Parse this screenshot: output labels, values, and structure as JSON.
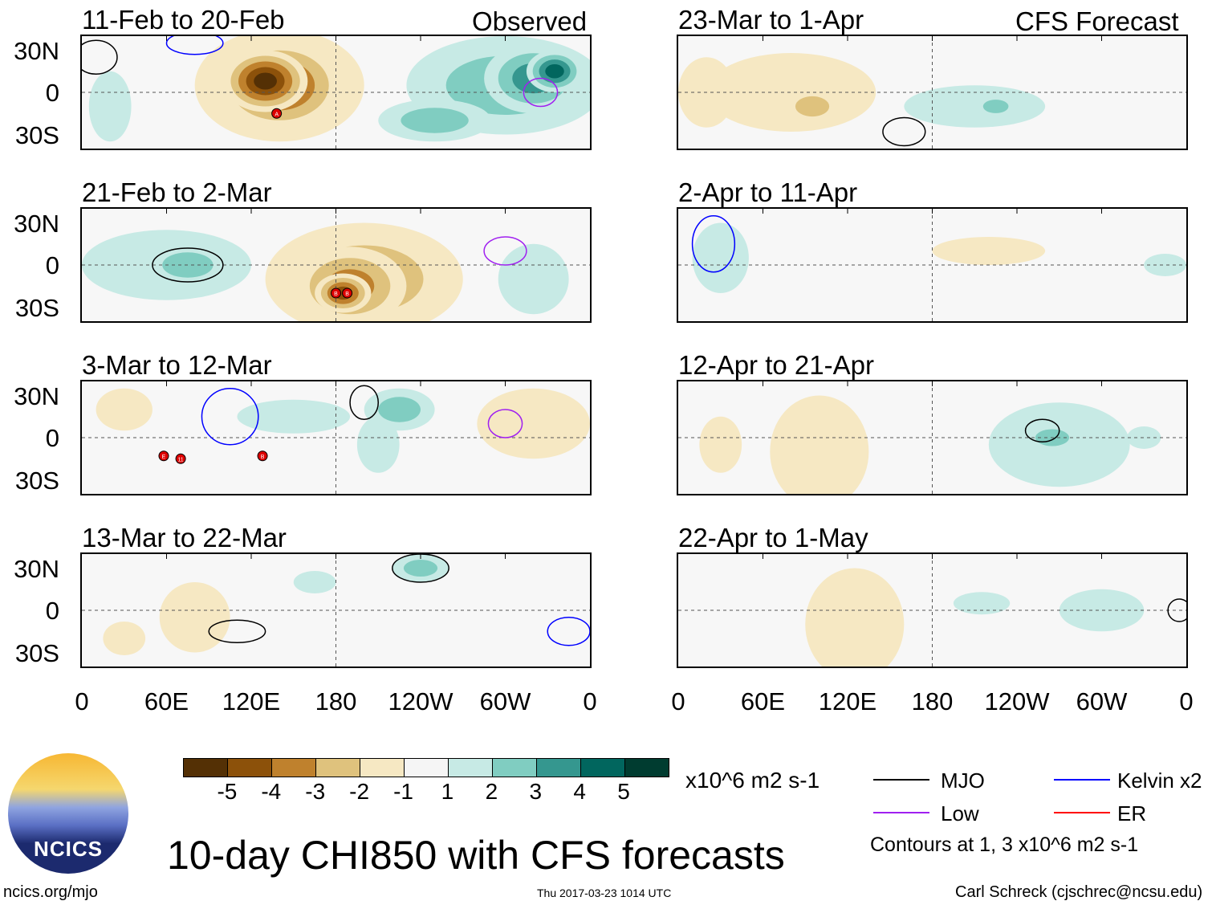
{
  "colors": [
    "#543005",
    "#8c510a",
    "#bf812d",
    "#dfc27d",
    "#f6e8c3",
    "#f5f5f5",
    "#c7eae5",
    "#80cdc1",
    "#35978f",
    "#01665e",
    "#003c30"
  ],
  "contour_colors": {
    "MJO": "#000000",
    "Kelvin": "#0000ff",
    "Low": "#a020f0",
    "ER": "#ff0000"
  },
  "headers": {
    "left": "Observed",
    "right": "CFS Forecast"
  },
  "lat_labels": [
    "30N",
    "0",
    "30S"
  ],
  "lon_labels": [
    "0",
    "60E",
    "120E",
    "180",
    "120W",
    "60W",
    "0"
  ],
  "panels": [
    {
      "title": "11-Feb to 20-Feb",
      "blobs": [
        [
          140,
          5,
          60,
          40,
          2
        ],
        [
          140,
          5,
          45,
          32,
          1
        ],
        [
          130,
          8,
          30,
          22,
          0
        ],
        [
          300,
          5,
          70,
          35,
          7
        ],
        [
          320,
          10,
          35,
          25,
          8
        ],
        [
          335,
          15,
          20,
          15,
          9
        ],
        [
          250,
          -20,
          40,
          15,
          7
        ],
        [
          20,
          -10,
          15,
          25,
          6
        ]
      ],
      "contours": [
        [
          325,
          0,
          12,
          10,
          "Low"
        ],
        [
          10,
          25,
          15,
          12,
          "MJO"
        ],
        [
          80,
          35,
          20,
          8,
          "Kelvin"
        ]
      ],
      "storms": [
        [
          138,
          -15,
          "A"
        ]
      ]
    },
    {
      "title": "21-Feb to 2-Mar",
      "blobs": [
        [
          200,
          -10,
          70,
          40,
          3
        ],
        [
          190,
          -15,
          40,
          28,
          2
        ],
        [
          185,
          -20,
          20,
          14,
          1
        ],
        [
          60,
          0,
          60,
          25,
          6
        ],
        [
          75,
          0,
          30,
          15,
          7
        ],
        [
          320,
          -10,
          25,
          25,
          6
        ]
      ],
      "contours": [
        [
          75,
          0,
          25,
          12,
          "MJO"
        ],
        [
          300,
          10,
          15,
          10,
          "Low"
        ]
      ],
      "storms": [
        [
          180,
          -20,
          "B"
        ],
        [
          188,
          -20,
          "B"
        ]
      ]
    },
    {
      "title": "3-Mar to 12-Mar",
      "blobs": [
        [
          150,
          15,
          40,
          12,
          6
        ],
        [
          210,
          -5,
          15,
          20,
          6
        ],
        [
          320,
          10,
          40,
          25,
          4
        ],
        [
          30,
          20,
          20,
          15,
          4
        ],
        [
          225,
          20,
          25,
          15,
          7
        ]
      ],
      "contours": [
        [
          200,
          25,
          10,
          12,
          "MJO"
        ],
        [
          300,
          10,
          12,
          10,
          "Low"
        ],
        [
          105,
          15,
          20,
          20,
          "Kelvin"
        ]
      ],
      "storms": [
        [
          58,
          -13,
          "E"
        ],
        [
          70,
          -15,
          "11"
        ],
        [
          128,
          -13,
          "B"
        ]
      ]
    },
    {
      "title": "13-Mar to 22-Mar",
      "blobs": [
        [
          80,
          -5,
          25,
          25,
          4
        ],
        [
          240,
          30,
          20,
          10,
          7
        ],
        [
          165,
          20,
          15,
          8,
          6
        ],
        [
          30,
          -20,
          15,
          12,
          4
        ]
      ],
      "contours": [
        [
          240,
          30,
          20,
          10,
          "MJO"
        ],
        [
          110,
          -15,
          20,
          8,
          "MJO"
        ],
        [
          345,
          -15,
          15,
          10,
          "Kelvin"
        ]
      ],
      "storms": []
    },
    {
      "title": "23-Mar to 1-Apr",
      "blobs": [
        [
          80,
          0,
          60,
          28,
          4
        ],
        [
          95,
          -10,
          20,
          12,
          3
        ],
        [
          20,
          0,
          20,
          25,
          4
        ],
        [
          210,
          -10,
          50,
          15,
          6
        ],
        [
          225,
          -10,
          15,
          8,
          7
        ]
      ],
      "contours": [
        [
          160,
          -28,
          15,
          10,
          "MJO"
        ]
      ],
      "storms": []
    },
    {
      "title": "2-Apr to 11-Apr",
      "blobs": [
        [
          220,
          10,
          40,
          10,
          4
        ],
        [
          30,
          5,
          20,
          25,
          6
        ],
        [
          345,
          0,
          15,
          8,
          6
        ]
      ],
      "contours": [
        [
          25,
          15,
          15,
          20,
          "Kelvin"
        ]
      ],
      "storms": []
    },
    {
      "title": "12-Apr to 21-Apr",
      "blobs": [
        [
          100,
          -10,
          35,
          40,
          4
        ],
        [
          270,
          -5,
          50,
          30,
          6
        ],
        [
          265,
          0,
          20,
          10,
          7
        ],
        [
          30,
          -5,
          15,
          20,
          4
        ],
        [
          330,
          0,
          12,
          8,
          6
        ]
      ],
      "contours": [
        [
          258,
          5,
          12,
          8,
          "MJO"
        ]
      ],
      "storms": []
    },
    {
      "title": "22-Apr to 1-May",
      "blobs": [
        [
          125,
          -10,
          35,
          40,
          4
        ],
        [
          215,
          5,
          20,
          8,
          6
        ],
        [
          300,
          0,
          30,
          15,
          6
        ]
      ],
      "contours": [
        [
          355,
          0,
          8,
          8,
          "MJO"
        ]
      ],
      "storms": []
    }
  ],
  "colorbar": {
    "labels": [
      "-5",
      "-4",
      "-3",
      "-2",
      "-1",
      "1",
      "2",
      "3",
      "4",
      "5"
    ],
    "units": "x10^6 m2 s-1"
  },
  "legend": {
    "items": [
      "MJO",
      "Kelvin x2",
      "Low",
      "ER"
    ],
    "note": "Contours at 1, 3 x10^6 m2 s-1"
  },
  "title": "10-day CHI850 with CFS forecasts",
  "logo": "NCICS",
  "url": "ncics.org/mjo",
  "timestamp": "Thu 2017-03-23 1014 UTC",
  "credit": "Carl Schreck (cjschrec@ncsu.edu)"
}
